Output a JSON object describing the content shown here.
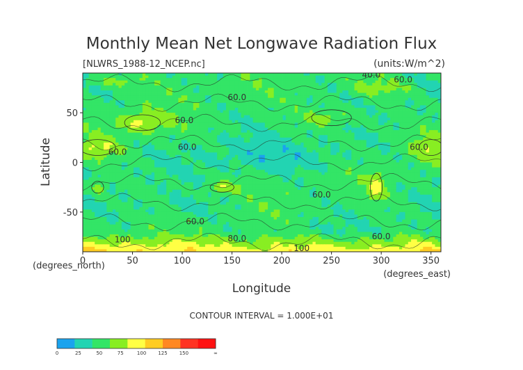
{
  "chart_data": {
    "type": "heatmap",
    "title": "Monthly Mean Net Longwave Radiation Flux",
    "subtitle": "[NLWRS_1988-12_NCEP.nc]",
    "units": "(units:W/m^2)",
    "xlabel": "Longitude",
    "ylabel": "Latitude",
    "x_unit_label": "(degrees_east)",
    "y_unit_label": "(degrees_north)",
    "xlim": [
      0,
      360
    ],
    "ylim": [
      -90,
      90
    ],
    "x_ticks": [
      0,
      50,
      100,
      150,
      200,
      250,
      300,
      350
    ],
    "y_ticks": [
      50,
      0,
      -50
    ],
    "contour_interval_text": "CONTOUR INTERVAL = 1.000E+01",
    "contour_labels": [
      {
        "text": "40.0",
        "x": 290,
        "y": 88
      },
      {
        "text": "60.0",
        "x": 322,
        "y": 83
      },
      {
        "text": "60.0",
        "x": 155,
        "y": 65
      },
      {
        "text": "60.0",
        "x": 102,
        "y": 42
      },
      {
        "text": "60.0",
        "x": 35,
        "y": 10
      },
      {
        "text": "60.0",
        "x": 105,
        "y": 15
      },
      {
        "text": "60.0",
        "x": 338,
        "y": 15
      },
      {
        "text": "60.0",
        "x": 240,
        "y": -33
      },
      {
        "text": "60.0",
        "x": 113,
        "y": -60
      },
      {
        "text": "60.0",
        "x": 300,
        "y": -75
      },
      {
        "text": "80.0",
        "x": 155,
        "y": -77
      },
      {
        "text": "100",
        "x": 40,
        "y": -78
      },
      {
        "text": "100",
        "x": 220,
        "y": -87
      }
    ],
    "colorbar": {
      "colors": [
        "#1aa3ee",
        "#22d4b2",
        "#33e566",
        "#88ee22",
        "#ffff44",
        "#ffcc22",
        "#ff8822",
        "#ff3322",
        "#ff1111"
      ],
      "labels": [
        "0",
        "25",
        "50",
        "75",
        "100",
        "125",
        "150",
        "∞"
      ]
    }
  }
}
